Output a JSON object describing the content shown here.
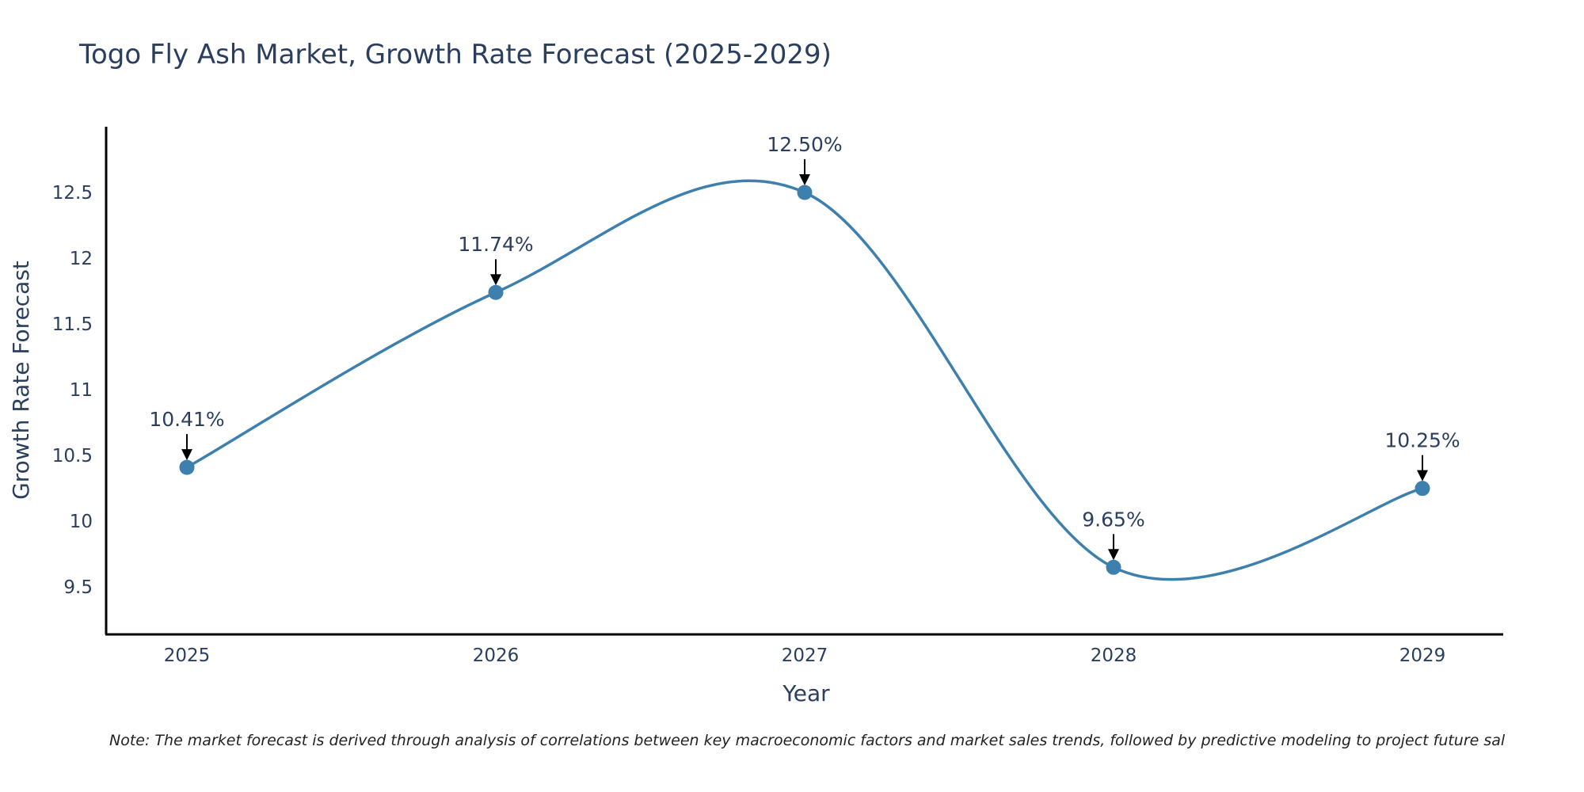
{
  "chart_data": {
    "type": "line",
    "title": "Togo Fly Ash Market, Growth Rate Forecast (2025-2029)",
    "xlabel": "Year",
    "ylabel": "Growth Rate Forecast",
    "categories": [
      "2025",
      "2026",
      "2027",
      "2028",
      "2029"
    ],
    "series": [
      {
        "name": "Growth Rate Forecast",
        "values": [
          10.41,
          11.74,
          12.5,
          9.65,
          10.25
        ],
        "labels": [
          "10.41%",
          "11.74%",
          "12.50%",
          "9.65%",
          "10.25%"
        ],
        "color": "#3d7fad",
        "line_shape": "spline"
      }
    ],
    "yticks": [
      9.5,
      10,
      10.5,
      11,
      11.5,
      12,
      12.5
    ],
    "ytick_labels": [
      "9.5",
      "10",
      "10.5",
      "11",
      "11.5",
      "12",
      "12.5"
    ],
    "ylim": [
      9.14,
      13.0
    ],
    "grid": false,
    "legend": "none",
    "note": "Note: The market forecast is derived through analysis of correlations between key macroeconomic factors and market sales trends, followed by predictive modeling to project future sal"
  },
  "colors": {
    "line": "#3d7fad",
    "marker": "#3d7fad",
    "text": "#2a3f5f",
    "axis": "#000000"
  }
}
